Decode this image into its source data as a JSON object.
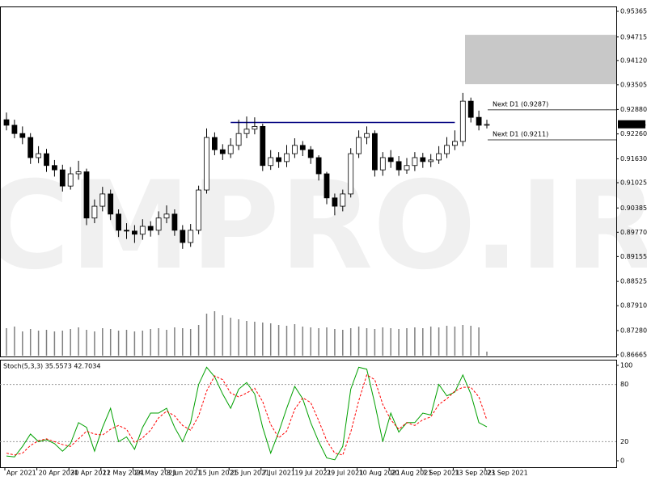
{
  "chart_data": [
    {
      "type": "candlestick",
      "watermark": "CMPRO.IR",
      "up_color": "#ffffff",
      "down_color": "#000000",
      "volume_color": "#808080",
      "level_color": "#000080",
      "zone_color": "#c8c8c8",
      "ylim": [
        0.86665,
        0.95365
      ],
      "yticks": [
        0.86665,
        {
          "value": 0.8728,
          "label": "0.87280"
        },
        {
          "value": 0.8791,
          "label": "0.87910"
        },
        0.88525,
        0.89155,
        {
          "value": 0.8977,
          "label": "0.89770"
        },
        0.90385,
        0.91025,
        {
          "value": 0.9163,
          "label": "0.91630"
        },
        {
          "value": 0.9226,
          "label": "0.92260"
        },
        {
          "value": 0.9288,
          "label": "0.92880"
        },
        0.93505,
        {
          "value": 0.9412,
          "label": "0.94120"
        },
        0.94715,
        0.95365
      ],
      "current_price": 0.92504,
      "level": 0.9255,
      "zone": [
        0.9352,
        0.9477
      ],
      "annotations": [
        {
          "label": "Next D1 (0.9287)",
          "value": 0.9287
        },
        {
          "label": "Next D1 (0.9211)",
          "value": 0.9211
        }
      ],
      "categories": [
        "Apr 2021",
        null,
        null,
        null,
        "20 Apr 2021",
        null,
        null,
        null,
        "30 Apr 2021",
        null,
        null,
        null,
        "12 May 2021",
        null,
        null,
        null,
        "24 May 2021",
        null,
        null,
        null,
        "3 Jun 2021",
        null,
        null,
        null,
        "15 Jun 2021",
        null,
        null,
        null,
        "25 Jun 2021",
        null,
        null,
        null,
        "7 Jul 2021",
        null,
        null,
        null,
        "19 Jul 2021",
        null,
        null,
        null,
        "29 Jul 2021",
        null,
        null,
        null,
        "10 Aug 2021",
        null,
        null,
        null,
        "20 Aug 2021",
        null,
        null,
        null,
        "1 Sep 2021",
        null,
        null,
        null,
        "13 Sep 2021",
        null,
        null,
        null,
        "23 Sep 2021"
      ],
      "open": [
        0.9262,
        0.9248,
        0.9227,
        0.9217,
        0.9166,
        0.9176,
        0.9146,
        0.9135,
        0.9094,
        0.9125,
        0.913,
        0.9013,
        0.9043,
        0.9074,
        0.9023,
        0.8982,
        0.898,
        0.8972,
        0.8992,
        0.8982,
        0.9013,
        0.9023,
        0.8982,
        0.8951,
        0.8982,
        0.9084,
        0.9217,
        0.9186,
        0.9176,
        0.9197,
        0.9227,
        0.9238,
        0.9245,
        0.9146,
        0.9166,
        0.9156,
        0.9176,
        0.9197,
        0.9186,
        0.9166,
        0.9125,
        0.9064,
        0.9043,
        0.9074,
        0.9176,
        0.9217,
        0.9227,
        0.9135,
        0.9166,
        0.9156,
        0.9135,
        0.9146,
        0.9166,
        0.9156,
        0.916,
        0.9176,
        0.9197,
        0.9207,
        0.9309,
        0.9268,
        0.9248
      ],
      "high": [
        0.928,
        0.9262,
        0.9245,
        0.9228,
        0.9195,
        0.9188,
        0.916,
        0.9148,
        0.9142,
        0.9158,
        0.9138,
        0.906,
        0.9092,
        0.9085,
        0.9035,
        0.9,
        0.8995,
        0.901,
        0.9005,
        0.903,
        0.9045,
        0.9035,
        0.8995,
        0.8998,
        0.9095,
        0.924,
        0.923,
        0.92,
        0.9215,
        0.9262,
        0.927,
        0.9268,
        0.9252,
        0.9185,
        0.918,
        0.9198,
        0.9215,
        0.9208,
        0.9195,
        0.9172,
        0.913,
        0.9075,
        0.9085,
        0.919,
        0.9235,
        0.9245,
        0.9235,
        0.918,
        0.9185,
        0.917,
        0.9165,
        0.918,
        0.9178,
        0.9175,
        0.9195,
        0.9218,
        0.9235,
        0.933,
        0.9318,
        0.9285,
        0.9262
      ],
      "low": [
        0.9235,
        0.9215,
        0.92,
        0.915,
        0.9152,
        0.913,
        0.9118,
        0.908,
        0.9085,
        0.911,
        0.8995,
        0.9,
        0.903,
        0.9008,
        0.8965,
        0.896,
        0.895,
        0.8958,
        0.8966,
        0.897,
        0.9,
        0.8968,
        0.8935,
        0.894,
        0.8972,
        0.9075,
        0.9172,
        0.916,
        0.9165,
        0.9185,
        0.9215,
        0.9225,
        0.9132,
        0.9135,
        0.914,
        0.9142,
        0.9165,
        0.917,
        0.915,
        0.9108,
        0.9048,
        0.902,
        0.903,
        0.9065,
        0.9165,
        0.92,
        0.9118,
        0.912,
        0.914,
        0.912,
        0.9125,
        0.9132,
        0.914,
        0.9142,
        0.915,
        0.9165,
        0.9185,
        0.9195,
        0.9255,
        0.9235,
        0.924
      ],
      "close": [
        0.9248,
        0.9227,
        0.9217,
        0.9166,
        0.9176,
        0.9146,
        0.9135,
        0.9094,
        0.9125,
        0.913,
        0.9013,
        0.9043,
        0.9074,
        0.9023,
        0.8982,
        0.898,
        0.8972,
        0.8992,
        0.8982,
        0.9013,
        0.9023,
        0.8982,
        0.8951,
        0.8982,
        0.9084,
        0.9217,
        0.9186,
        0.9176,
        0.9197,
        0.9227,
        0.9238,
        0.9245,
        0.9146,
        0.9166,
        0.9156,
        0.9176,
        0.9197,
        0.9186,
        0.9166,
        0.9125,
        0.9064,
        0.9043,
        0.9074,
        0.9176,
        0.9217,
        0.9227,
        0.9135,
        0.9166,
        0.9156,
        0.9135,
        0.9146,
        0.9166,
        0.9156,
        0.916,
        0.9176,
        0.9197,
        0.9207,
        0.9309,
        0.9268,
        0.9248,
        0.925
      ],
      "volume": [
        34,
        36,
        30,
        33,
        31,
        32,
        30,
        31,
        33,
        35,
        32,
        30,
        34,
        33,
        31,
        32,
        30,
        31,
        33,
        34,
        32,
        35,
        34,
        33,
        38,
        52,
        55,
        50,
        47,
        45,
        43,
        42,
        41,
        40,
        38,
        37,
        39,
        36,
        35,
        34,
        35,
        33,
        32,
        34,
        36,
        34,
        33,
        35,
        34,
        33,
        34,
        35,
        34,
        36,
        35,
        37,
        36,
        38,
        37,
        35,
        5
      ]
    },
    {
      "type": "line",
      "label": "Stoch(5,3,3) 35.5573 42.7034",
      "ylim": [
        0,
        100
      ],
      "yticks": [
        0,
        20,
        80,
        100
      ],
      "series": [
        {
          "color": "#00a000",
          "dash": false,
          "values": [
            5,
            4,
            15,
            28,
            20,
            22,
            18,
            10,
            18,
            40,
            35,
            10,
            35,
            55,
            20,
            25,
            12,
            35,
            50,
            50,
            55,
            35,
            20,
            40,
            80,
            98,
            88,
            70,
            55,
            75,
            82,
            70,
            35,
            8,
            30,
            55,
            78,
            65,
            40,
            20,
            3,
            1,
            15,
            75,
            98,
            96,
            60,
            20,
            50,
            30,
            40,
            40,
            50,
            48,
            80,
            68,
            72,
            90,
            70,
            40,
            35.5573
          ]
        },
        {
          "color": "#ff0000",
          "dash": true,
          "values": [
            8,
            6,
            8,
            16,
            21,
            23,
            20,
            17,
            15,
            23,
            31,
            28,
            27,
            33,
            37,
            33,
            19,
            24,
            32,
            45,
            52,
            47,
            37,
            32,
            47,
            73,
            89,
            85,
            71,
            67,
            71,
            76,
            62,
            38,
            24,
            31,
            54,
            66,
            61,
            42,
            21,
            8,
            6,
            30,
            63,
            90,
            85,
            59,
            43,
            33,
            40,
            37,
            43,
            46,
            59,
            65,
            73,
            77,
            77,
            67,
            42.7034
          ]
        }
      ]
    }
  ]
}
